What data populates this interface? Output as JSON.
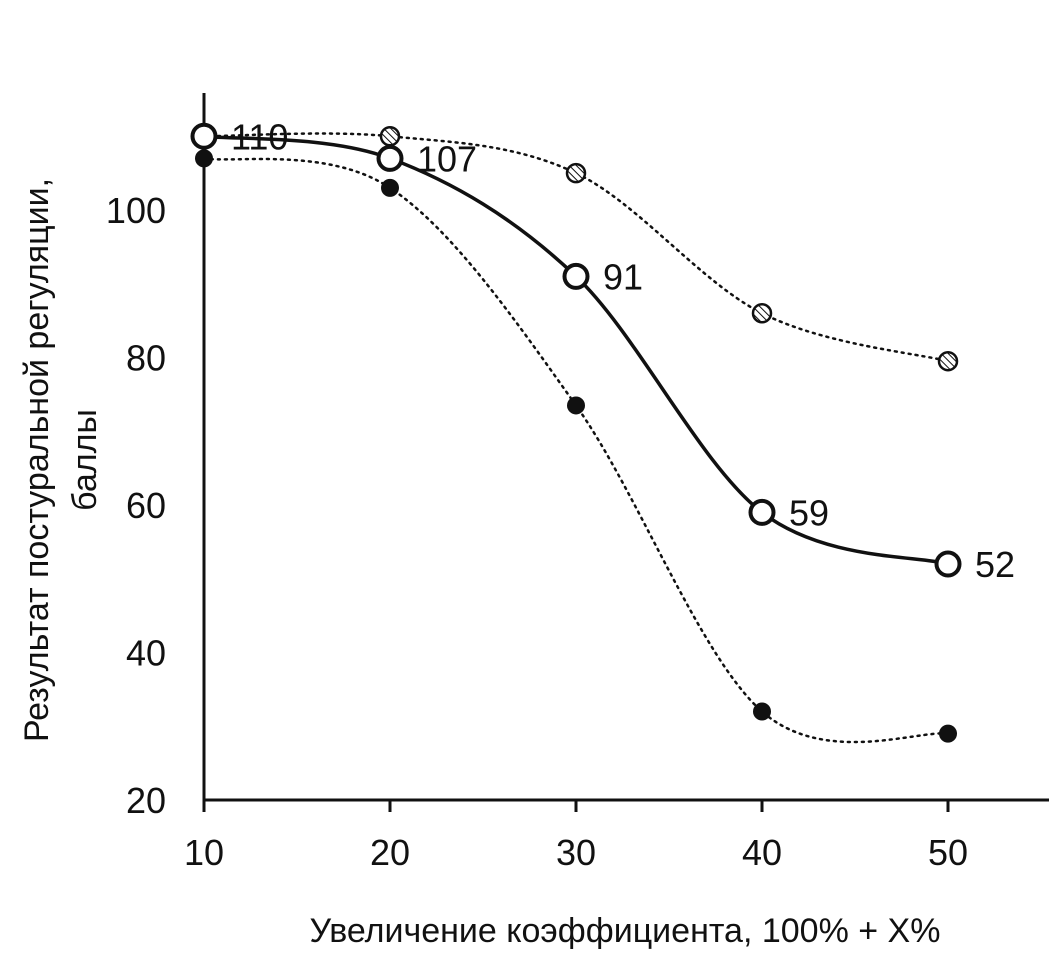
{
  "chart_data": {
    "type": "line",
    "title": "",
    "xlabel": "Увеличение коэффициента, 100% + X%",
    "ylabel": [
      "Результат постуральной регуляции,",
      "баллы"
    ],
    "x": [
      10,
      20,
      30,
      40,
      50
    ],
    "xlim": [
      10,
      55
    ],
    "ylim": [
      20,
      115
    ],
    "xticks": [
      "10",
      "20",
      "30",
      "40",
      "50"
    ],
    "yticks": [
      "20",
      "40",
      "60",
      "80",
      "100"
    ],
    "grid": false,
    "legend": "none",
    "series": [
      {
        "marker": "open-circle",
        "line": "solid",
        "values": [
          110,
          107,
          91,
          59,
          52
        ],
        "labels": [
          "110",
          "107",
          "91",
          "59",
          "52"
        ]
      },
      {
        "marker": "hatched-circle",
        "line": "dotted",
        "values": [
          110,
          110,
          105,
          86,
          79.5
        ],
        "labels": []
      },
      {
        "marker": "filled-circle",
        "line": "dotted",
        "values": [
          107,
          103,
          73.5,
          32,
          29
        ],
        "labels": []
      }
    ]
  },
  "colors": {
    "ink": "#111111",
    "background": "#ffffff"
  }
}
